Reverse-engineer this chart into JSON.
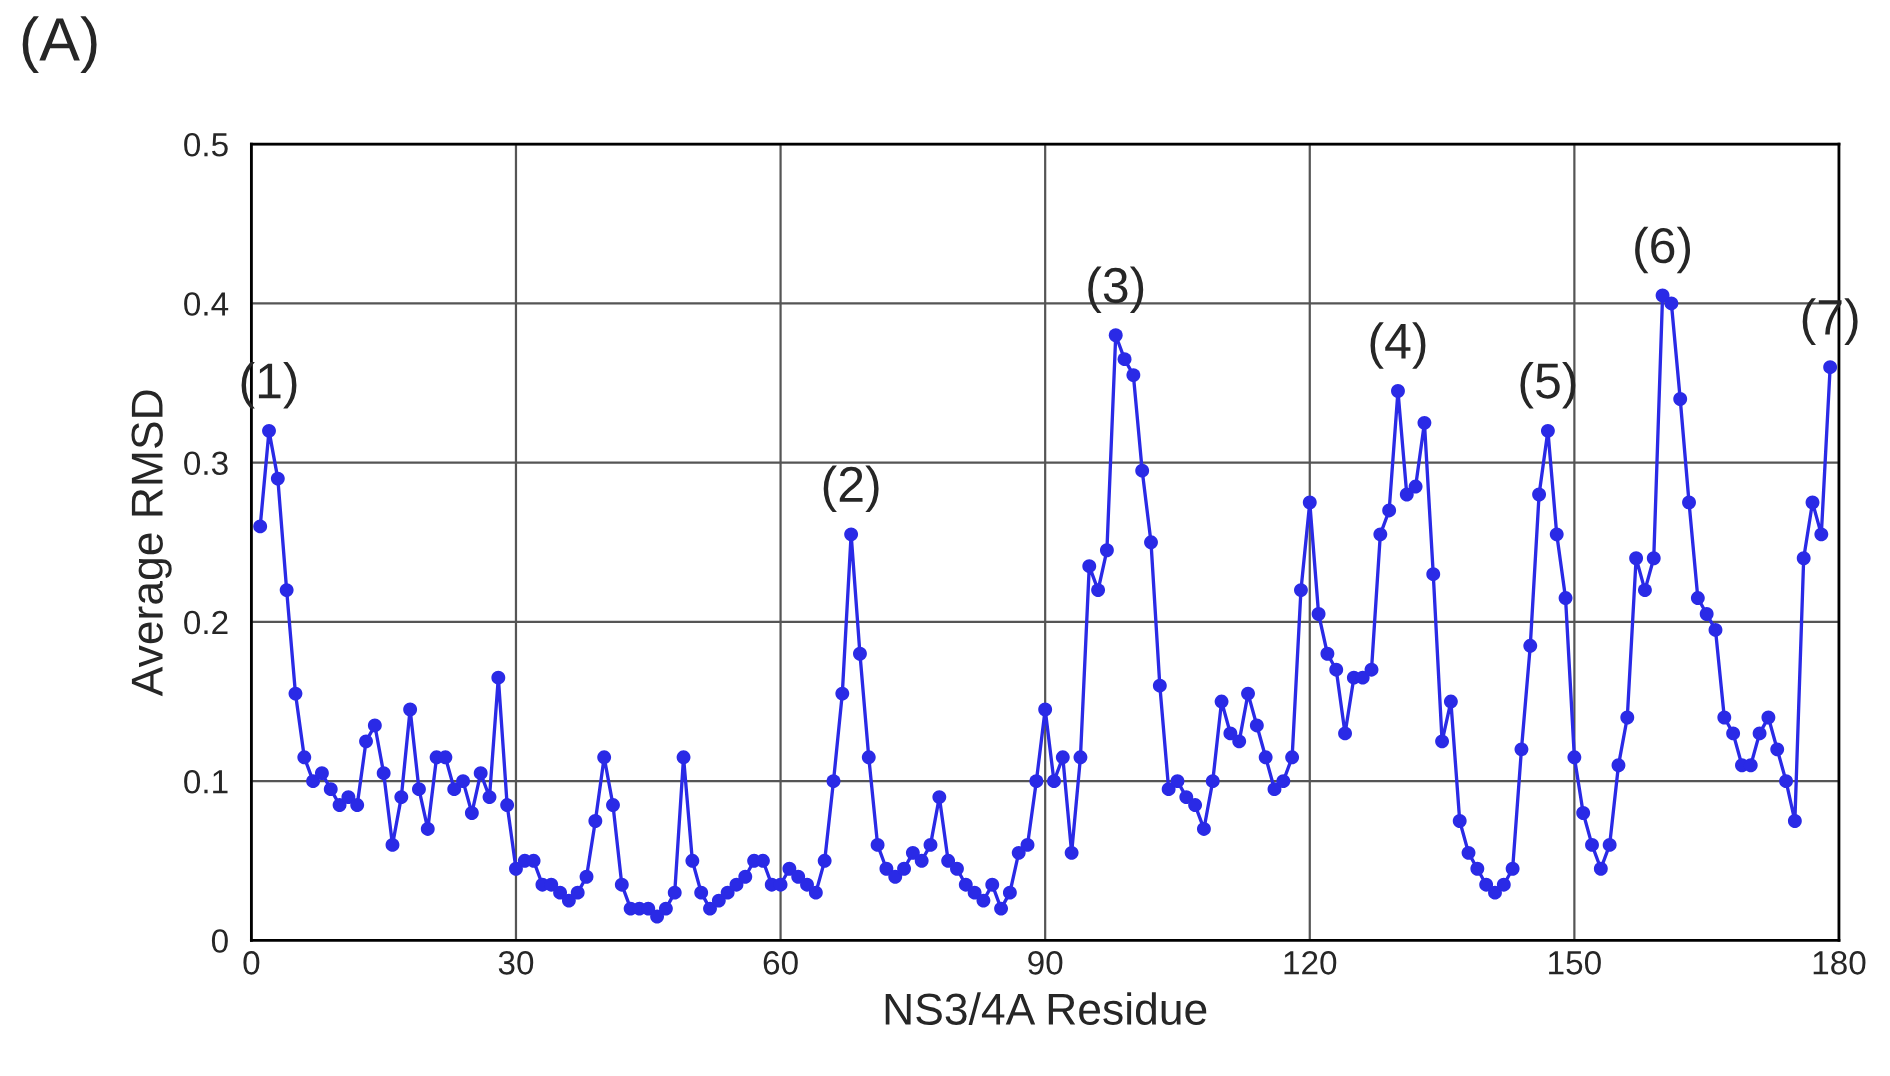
{
  "chart_data": {
    "type": "line",
    "xlabel": "NS3/4A Residue",
    "ylabel": "Average RMSD",
    "x": [
      1,
      2,
      3,
      4,
      5,
      6,
      7,
      8,
      9,
      10,
      11,
      12,
      13,
      14,
      15,
      16,
      17,
      18,
      19,
      20,
      21,
      22,
      23,
      24,
      25,
      26,
      27,
      28,
      29,
      30,
      31,
      32,
      33,
      34,
      35,
      36,
      37,
      38,
      39,
      40,
      41,
      42,
      43,
      44,
      45,
      46,
      47,
      48,
      49,
      50,
      51,
      52,
      53,
      54,
      55,
      56,
      57,
      58,
      59,
      60,
      61,
      62,
      63,
      64,
      65,
      66,
      67,
      68,
      69,
      70,
      71,
      72,
      73,
      74,
      75,
      76,
      77,
      78,
      79,
      80,
      81,
      82,
      83,
      84,
      85,
      86,
      87,
      88,
      89,
      90,
      91,
      92,
      93,
      94,
      95,
      96,
      97,
      98,
      99,
      100,
      101,
      102,
      103,
      104,
      105,
      106,
      107,
      108,
      109,
      110,
      111,
      112,
      113,
      114,
      115,
      116,
      117,
      118,
      119,
      120,
      121,
      122,
      123,
      124,
      125,
      126,
      127,
      128,
      129,
      130,
      131,
      132,
      133,
      134,
      135,
      136,
      137,
      138,
      139,
      140,
      141,
      142,
      143,
      144,
      145,
      146,
      147,
      148,
      149,
      150,
      151,
      152,
      153,
      154,
      155,
      156,
      157,
      158,
      159,
      160,
      161,
      162,
      163,
      164,
      165,
      166,
      167,
      168,
      169,
      170,
      171,
      172,
      173,
      174,
      175,
      176,
      177,
      178,
      179
    ],
    "series": [
      {
        "color": "#2a2ae6",
        "values": [
          0.26,
          0.32,
          0.29,
          0.22,
          0.155,
          0.115,
          0.1,
          0.105,
          0.095,
          0.085,
          0.09,
          0.085,
          0.125,
          0.135,
          0.105,
          0.06,
          0.09,
          0.145,
          0.095,
          0.07,
          0.115,
          0.115,
          0.095,
          0.1,
          0.08,
          0.105,
          0.09,
          0.165,
          0.085,
          0.045,
          0.05,
          0.05,
          0.035,
          0.035,
          0.03,
          0.025,
          0.03,
          0.04,
          0.075,
          0.115,
          0.085,
          0.035,
          0.02,
          0.02,
          0.02,
          0.015,
          0.02,
          0.03,
          0.115,
          0.05,
          0.03,
          0.02,
          0.025,
          0.03,
          0.035,
          0.04,
          0.05,
          0.05,
          0.035,
          0.035,
          0.045,
          0.04,
          0.035,
          0.03,
          0.05,
          0.1,
          0.155,
          0.255,
          0.18,
          0.115,
          0.06,
          0.045,
          0.04,
          0.045,
          0.055,
          0.05,
          0.06,
          0.09,
          0.05,
          0.045,
          0.035,
          0.03,
          0.025,
          0.035,
          0.02,
          0.03,
          0.055,
          0.06,
          0.1,
          0.145,
          0.1,
          0.115,
          0.055,
          0.115,
          0.235,
          0.22,
          0.245,
          0.38,
          0.365,
          0.355,
          0.295,
          0.25,
          0.16,
          0.095,
          0.1,
          0.09,
          0.085,
          0.07,
          0.1,
          0.15,
          0.13,
          0.125,
          0.155,
          0.135,
          0.115,
          0.095,
          0.1,
          0.115,
          0.22,
          0.275,
          0.205,
          0.18,
          0.17,
          0.13,
          0.165,
          0.165,
          0.17,
          0.255,
          0.27,
          0.345,
          0.28,
          0.285,
          0.325,
          0.23,
          0.125,
          0.15,
          0.075,
          0.055,
          0.045,
          0.035,
          0.03,
          0.035,
          0.045,
          0.12,
          0.185,
          0.28,
          0.32,
          0.255,
          0.215,
          0.115,
          0.08,
          0.06,
          0.045,
          0.06,
          0.11,
          0.14,
          0.24,
          0.22,
          0.24,
          0.405,
          0.4,
          0.34,
          0.275,
          0.215,
          0.205,
          0.195,
          0.14,
          0.13,
          0.11,
          0.11,
          0.13,
          0.14,
          0.12,
          0.1,
          0.075,
          0.24,
          0.275,
          0.255,
          0.36
        ]
      }
    ],
    "xlim": [
      0,
      180
    ],
    "xticks": [
      0,
      30,
      60,
      90,
      120,
      150,
      180
    ],
    "ylim": [
      0,
      0.5
    ],
    "yticks": [
      0,
      0.1,
      0.2,
      0.3,
      0.4,
      0.5
    ],
    "grid": true,
    "marker": "circle",
    "line_style": "solid",
    "annotations": [
      "(A)",
      {
        "text": "(1)",
        "x": 2,
        "y": 0.32
      },
      {
        "text": "(2)",
        "x": 68,
        "y": 0.255
      },
      {
        "text": "(3)",
        "x": 98,
        "y": 0.38
      },
      {
        "text": "(4)",
        "x": 130,
        "y": 0.345
      },
      {
        "text": "(5)",
        "x": 147,
        "y": 0.32
      },
      {
        "text": "(6)",
        "x": 160,
        "y": 0.405
      },
      {
        "text": "(7)",
        "x": 179,
        "y": 0.36
      }
    ]
  }
}
